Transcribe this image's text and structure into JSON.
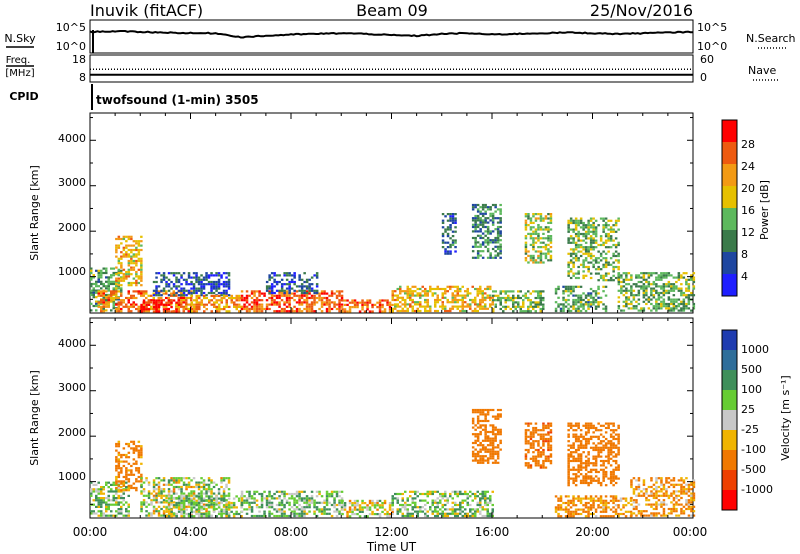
{
  "header": {
    "station": "Inuvik (fitACF)",
    "beam": "Beam 09",
    "date": "25/Nov/2016"
  },
  "nsky_panel": {
    "left_label": "N.Sky",
    "left_ticks": [
      "10^5",
      "10^0"
    ],
    "right_label": "N.Search",
    "right_ticks": [
      "10^5",
      "10^0"
    ]
  },
  "freq_panel": {
    "left_label_line1": "Freq.",
    "left_label_line2": "[MHz]",
    "left_ticks": [
      "18",
      "8"
    ],
    "right_label": "Nave",
    "right_ticks": [
      "60",
      "0"
    ]
  },
  "cpid": {
    "label": "CPID",
    "text": "twofsound (1-min) 3505"
  },
  "x_axis": {
    "label": "Time UT",
    "ticks": [
      "00:00",
      "04:00",
      "08:00",
      "12:00",
      "16:00",
      "20:00",
      "00:00"
    ]
  },
  "power_panel": {
    "ylabel": "Slant Range [km]",
    "yticks": [
      "1000",
      "2000",
      "3000",
      "4000"
    ],
    "cbar_label": "Power [dB]",
    "cbar_ticks": [
      "4",
      "8",
      "12",
      "16",
      "20",
      "24",
      "28"
    ],
    "cbar_colors": [
      "#1f1fff",
      "#1e46a0",
      "#3a7a4a",
      "#5cb85c",
      "#e6c000",
      "#f39a14",
      "#ee5a10",
      "#ff0000"
    ]
  },
  "velocity_panel": {
    "ylabel": "Slant Range [km]",
    "yticks": [
      "1000",
      "2000",
      "3000",
      "4000"
    ],
    "cbar_label": "Velocity [m s⁻¹]",
    "cbar_ticks": [
      "1000",
      "500",
      "100",
      "25",
      "-25",
      "-100",
      "-500",
      "-1000"
    ],
    "cbar_colors": [
      "#1f3cb0",
      "#2f6e9a",
      "#3f8f5a",
      "#66cc33",
      "#c8c8c8",
      "#f0b400",
      "#f07800",
      "#ee4000",
      "#ff0000"
    ]
  },
  "chart_data": [
    {
      "type": "heatmap",
      "title": "Power",
      "xlabel": "Time UT",
      "ylabel": "Slant Range [km]",
      "xlim": [
        "00:00",
        "24:00"
      ],
      "ylim": [
        200,
        4600
      ],
      "zlabel": "Power [dB]",
      "zlim": [
        0,
        32
      ],
      "patches": [
        {
          "t0": 0.0,
          "t1": 1.2,
          "r0": 250,
          "r1": 1200,
          "p": 12
        },
        {
          "t0": 0.3,
          "t1": 4.0,
          "r0": 250,
          "r1": 700,
          "p": 24
        },
        {
          "t0": 1.0,
          "t1": 2.0,
          "r0": 800,
          "r1": 1900,
          "p": 20
        },
        {
          "t0": 2.0,
          "t1": 3.5,
          "r0": 250,
          "r1": 500,
          "p": 30
        },
        {
          "t0": 2.5,
          "t1": 5.5,
          "r0": 600,
          "r1": 1100,
          "p": 6
        },
        {
          "t0": 4.0,
          "t1": 6.0,
          "r0": 250,
          "r1": 600,
          "p": 22
        },
        {
          "t0": 6.0,
          "t1": 10.0,
          "r0": 250,
          "r1": 700,
          "p": 26
        },
        {
          "t0": 7.0,
          "t1": 9.0,
          "r0": 650,
          "r1": 1100,
          "p": 7
        },
        {
          "t0": 10.0,
          "t1": 12.0,
          "r0": 250,
          "r1": 500,
          "p": 25
        },
        {
          "t0": 12.0,
          "t1": 16.0,
          "r0": 250,
          "r1": 800,
          "p": 20
        },
        {
          "t0": 14.0,
          "t1": 14.5,
          "r0": 1500,
          "r1": 2400,
          "p": 8
        },
        {
          "t0": 15.2,
          "t1": 16.3,
          "r0": 1400,
          "r1": 2600,
          "p": 10
        },
        {
          "t0": 16.0,
          "t1": 18.0,
          "r0": 250,
          "r1": 700,
          "p": 14
        },
        {
          "t0": 17.3,
          "t1": 18.3,
          "r0": 1300,
          "r1": 2400,
          "p": 16
        },
        {
          "t0": 18.5,
          "t1": 20.5,
          "r0": 250,
          "r1": 800,
          "p": 12
        },
        {
          "t0": 19.0,
          "t1": 21.0,
          "r0": 900,
          "r1": 2300,
          "p": 14
        },
        {
          "t0": 21.0,
          "t1": 24.0,
          "r0": 250,
          "r1": 1100,
          "p": 13
        }
      ]
    },
    {
      "type": "heatmap",
      "title": "Velocity",
      "xlabel": "Time UT",
      "ylabel": "Slant Range [km]",
      "xlim": [
        "00:00",
        "24:00"
      ],
      "ylim": [
        200,
        4600
      ],
      "zlabel": "Velocity [m s-1]",
      "zlim": [
        -1000,
        1000
      ],
      "patches": [
        {
          "t0": 0.0,
          "t1": 1.5,
          "r0": 250,
          "r1": 1000,
          "v": 60
        },
        {
          "t0": 1.0,
          "t1": 2.0,
          "r0": 800,
          "r1": 1900,
          "v": -200
        },
        {
          "t0": 2.0,
          "t1": 5.5,
          "r0": 250,
          "r1": 1100,
          "v": 10
        },
        {
          "t0": 3.0,
          "t1": 6.0,
          "r0": 250,
          "r1": 700,
          "v": 70
        },
        {
          "t0": 6.0,
          "t1": 10.0,
          "r0": 250,
          "r1": 800,
          "v": 80
        },
        {
          "t0": 10.0,
          "t1": 12.0,
          "r0": 250,
          "r1": 600,
          "v": -5
        },
        {
          "t0": 12.0,
          "t1": 16.0,
          "r0": 250,
          "r1": 800,
          "v": 60
        },
        {
          "t0": 15.2,
          "t1": 16.3,
          "r0": 1400,
          "r1": 2600,
          "v": -300
        },
        {
          "t0": 17.3,
          "t1": 18.3,
          "r0": 1300,
          "r1": 2300,
          "v": -400
        },
        {
          "t0": 18.5,
          "t1": 21.5,
          "r0": 250,
          "r1": 700,
          "v": -150
        },
        {
          "t0": 19.0,
          "t1": 21.0,
          "r0": 900,
          "r1": 2300,
          "v": -350
        },
        {
          "t0": 21.5,
          "t1": 24.0,
          "r0": 250,
          "r1": 1100,
          "v": -120
        }
      ]
    },
    {
      "type": "line",
      "title": "N.Sky / N.Search",
      "x": [
        0,
        1,
        2,
        3,
        4,
        5,
        6,
        7,
        8,
        9,
        10,
        11,
        12,
        13,
        14,
        15,
        16,
        17,
        18,
        19,
        20,
        21,
        22,
        23,
        24
      ],
      "series": [
        {
          "values": [
            3.2,
            3.3,
            3.2,
            3.1,
            3.0,
            3.0,
            2.4,
            2.6,
            2.8,
            2.9,
            3.0,
            2.9,
            2.7,
            2.6,
            2.9,
            3.0,
            2.8,
            2.9,
            3.0,
            3.1,
            3.0,
            2.9,
            3.0,
            3.1,
            3.2
          ]
        }
      ]
    },
    {
      "type": "line",
      "title": "Freq. / Nave",
      "x": [
        0,
        24
      ],
      "series": [
        {
          "values": [
            11,
            11
          ]
        },
        {
          "values": [
            32,
            32
          ]
        }
      ]
    }
  ]
}
